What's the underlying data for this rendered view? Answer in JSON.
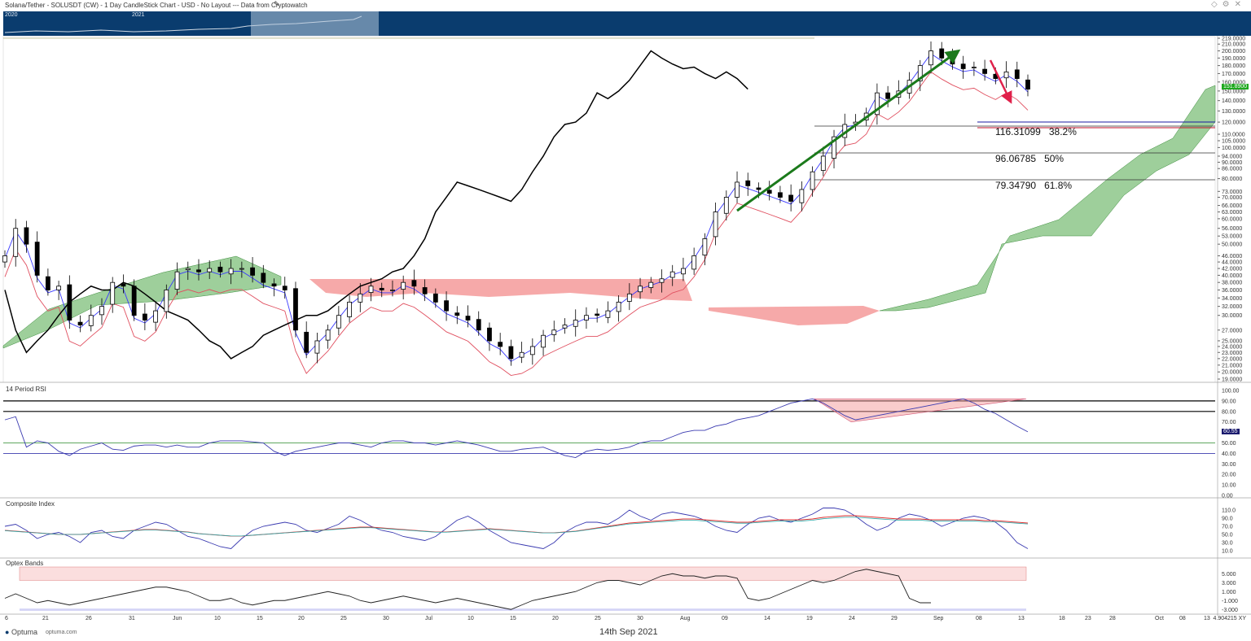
{
  "header": {
    "title": "Solana/Tether - SOLUSDT (CW) - 1 Day CandleStick Chart - USD - No Layout --- Data from Cryptowatch",
    "overview_years": [
      "2020",
      "2021"
    ]
  },
  "panels": {
    "rsi_label": "14 Period RSI",
    "composite_label": "Composite Index",
    "optex_label": "Optex Bands"
  },
  "fib_levels": [
    {
      "price": "116.31099",
      "pct": "38.2%"
    },
    {
      "price": "96.06785",
      "pct": "50%"
    },
    {
      "price": "79.34790",
      "pct": "61.8%"
    }
  ],
  "price_tag": "151.8900",
  "rsi_tag": "60.55",
  "x_axis_labels": [
    "6",
    "21",
    "26",
    "31",
    "Jun",
    "10",
    "15",
    "20",
    "25",
    "30",
    "Jul",
    "10",
    "15",
    "20",
    "25",
    "30",
    "Aug",
    "09",
    "14",
    "19",
    "24",
    "29",
    "Sep",
    "08",
    "13",
    "18",
    "23",
    "28",
    "Oct",
    "08",
    "13"
  ],
  "footer": {
    "logo": "Optuma",
    "site": "optuma.com",
    "date": "14th Sep 2021",
    "xy_readout": "4.904215",
    "xy_label": "XY"
  },
  "colors": {
    "candle_up": "#ffffff",
    "candle_down": "#000000",
    "kumo_bull": "#7dbf7a",
    "kumo_bear": "#f49a9a",
    "tenkan": "#3a3aff",
    "kijun": "#e05060",
    "chikou": "#000000",
    "trend_arrow": "#1b7a1b",
    "down_arrow": "#e0204a",
    "overview_bg": "#0a3c6e"
  },
  "chart_data": {
    "type": "candlestick",
    "title": "Solana/Tether - SOLUSDT (CW) - 1 Day CandleStick Chart - USD",
    "x_range": [
      "2021-05-16",
      "2021-10-14"
    ],
    "y_axis": {
      "scale": "log",
      "tick_labels": [
        "219.0000",
        "210.0000",
        "200.0000",
        "190.0000",
        "180.0000",
        "170.0000",
        "160.0000",
        "150.0000",
        "140.0000",
        "130.0000",
        "120.0000",
        "110.0000",
        "105.0000",
        "100.0000",
        "94.0000",
        "90.0000",
        "86.0000",
        "80.0000",
        "73.0000",
        "70.0000",
        "66.0000",
        "63.0000",
        "60.0000",
        "56.0000",
        "53.0000",
        "50.0000",
        "46.0000",
        "44.0000",
        "42.0000",
        "40.0000",
        "38.0000",
        "36.0000",
        "34.0000",
        "32.0000",
        "30.0000",
        "27.0000",
        "25.0000",
        "24.0000",
        "23.0000",
        "22.0000",
        "21.0000",
        "20.0000",
        "19.0000"
      ],
      "range": [
        18.5,
        222
      ]
    },
    "fib_retracements": [
      {
        "level": 116.31099,
        "ratio": "38.2%"
      },
      {
        "level": 96.06785,
        "ratio": "50%"
      },
      {
        "level": 79.3479,
        "ratio": "61.8%"
      }
    ],
    "last_price": 151.89,
    "rsi": {
      "period": 14,
      "tick_labels": [
        "100.00",
        "90.00",
        "80.00",
        "70.00",
        "60.00",
        "50.00",
        "40.00",
        "30.00",
        "20.00",
        "10.00",
        "0.00"
      ],
      "levels": [
        90,
        80,
        50,
        40
      ],
      "last": 60.55,
      "values": [
        72,
        75,
        46,
        52,
        50,
        42,
        38,
        44,
        47,
        50,
        44,
        43,
        47,
        48,
        48,
        46,
        48,
        46,
        46,
        50,
        52,
        52,
        52,
        51,
        50,
        42,
        38,
        42,
        44,
        46,
        48,
        50,
        50,
        48,
        46,
        50,
        52,
        52,
        50,
        50,
        48,
        50,
        52,
        50,
        48,
        45,
        42,
        42,
        44,
        45,
        46,
        42,
        38,
        36,
        42,
        44,
        43,
        44,
        46,
        50,
        52,
        52,
        56,
        60,
        62,
        62,
        66,
        68,
        72,
        74,
        76,
        80,
        84,
        88,
        90,
        92,
        88,
        82,
        76,
        72,
        74,
        76,
        78,
        80,
        82,
        84,
        86,
        88,
        90,
        92,
        88,
        82,
        78,
        72,
        66,
        60.55
      ]
    },
    "composite_index": {
      "tick_labels": [
        "110.0",
        "90.0",
        "70.0",
        "50.0",
        "30.0",
        "10.0"
      ],
      "values": [
        70,
        75,
        60,
        40,
        50,
        55,
        45,
        30,
        55,
        60,
        45,
        40,
        60,
        70,
        80,
        75,
        60,
        45,
        40,
        30,
        20,
        15,
        40,
        60,
        70,
        75,
        80,
        75,
        60,
        55,
        65,
        75,
        95,
        85,
        70,
        60,
        55,
        45,
        40,
        35,
        45,
        65,
        85,
        95,
        80,
        60,
        45,
        30,
        25,
        20,
        15,
        30,
        55,
        70,
        80,
        80,
        75,
        90,
        110,
        95,
        85,
        100,
        105,
        100,
        95,
        85,
        70,
        60,
        55,
        75,
        90,
        95,
        85,
        80,
        90,
        100,
        115,
        115,
        110,
        95,
        75,
        60,
        70,
        90,
        100,
        95,
        85,
        70,
        80,
        90,
        95,
        90,
        80,
        60,
        30,
        15
      ],
      "signal_values": [
        60,
        58,
        56,
        54,
        52,
        50,
        50,
        50,
        52,
        54,
        56,
        58,
        60,
        62,
        62,
        60,
        58,
        56,
        52,
        50,
        48,
        46,
        46,
        48,
        50,
        52,
        54,
        56,
        58,
        60,
        62,
        64,
        66,
        68,
        68,
        66,
        64,
        62,
        60,
        58,
        56,
        56,
        58,
        60,
        62,
        64,
        62,
        60,
        58,
        56,
        54,
        54,
        56,
        58,
        62,
        66,
        70,
        74,
        78,
        80,
        82,
        84,
        86,
        88,
        88,
        86,
        84,
        82,
        80,
        80,
        82,
        84,
        86,
        86,
        86,
        88,
        92,
        94,
        96,
        96,
        94,
        92,
        90,
        88,
        88,
        88,
        86,
        86,
        86,
        86,
        86,
        84,
        84,
        82,
        80,
        78
      ]
    },
    "optex_bands": {
      "tick_labels": [
        "5.000",
        "3.000",
        "1.000",
        "-1.000",
        "-3.000"
      ],
      "values": [
        -0.5,
        0.5,
        -0.5,
        -1.5,
        -1.0,
        -1.5,
        -2.0,
        -1.5,
        -1.0,
        -0.5,
        0,
        0.5,
        1.0,
        1.5,
        2.0,
        2.0,
        1.5,
        1.0,
        0,
        -1.0,
        -1.0,
        -0.5,
        -1.5,
        -2.0,
        -1.5,
        -1.0,
        -1.0,
        -0.5,
        0,
        0.5,
        1.0,
        0.5,
        0,
        -1.0,
        -1.5,
        -1.0,
        -0.5,
        0,
        -0.5,
        -1.0,
        -1.5,
        -1.0,
        -0.5,
        -1.0,
        -1.5,
        -2.0,
        -2.5,
        -3.0,
        -2.0,
        -1.0,
        -0.5,
        0,
        0.5,
        1.0,
        2.0,
        3.0,
        3.5,
        3.5,
        3.0,
        2.5,
        3.5,
        4.5,
        5.0,
        4.5,
        4.5,
        4.0,
        4.5,
        4.5,
        4.0,
        -0.5,
        -1.0,
        -0.5,
        0.5,
        1.5,
        2.5,
        3.5,
        3.0,
        3.5,
        4.5,
        5.5,
        6.0,
        5.5,
        5.0,
        4.5,
        -0.5,
        -1.5,
        -1.5
      ]
    }
  }
}
